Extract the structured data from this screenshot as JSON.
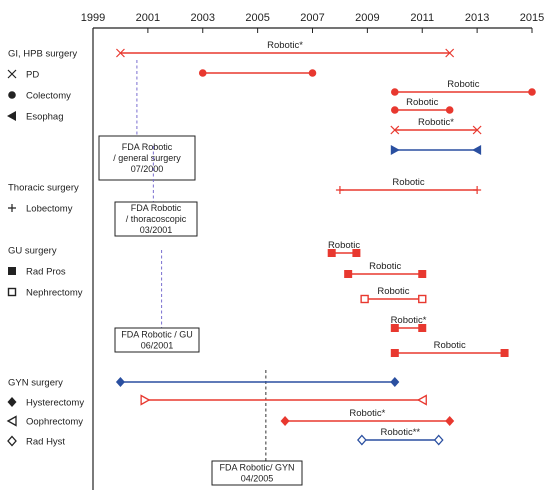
{
  "chart_data": {
    "type": "timeline",
    "x_axis": {
      "ticks": [
        1999,
        2001,
        2003,
        2005,
        2007,
        2009,
        2011,
        2013,
        2015
      ],
      "range": [
        1999,
        2015
      ]
    },
    "colors": {
      "red": "#e8382f",
      "blue": "#2a4fa0",
      "fda_red": "#7a6fd0",
      "fda_black": "#333333"
    },
    "categories": [
      {
        "text": "GI, HPB surgery",
        "kind": "header"
      },
      {
        "text": "PD",
        "kind": "legend",
        "marker": "x-icon"
      },
      {
        "text": "Colectomy",
        "kind": "legend",
        "marker": "circle-icon"
      },
      {
        "text": "Esophag",
        "kind": "legend",
        "marker": "left-triangle-icon"
      },
      {
        "text": "Thoracic surgery",
        "kind": "header"
      },
      {
        "text": "Lobectomy",
        "kind": "legend",
        "marker": "plus-icon"
      },
      {
        "text": "GU surgery",
        "kind": "header"
      },
      {
        "text": "Rad Pros",
        "kind": "legend",
        "marker": "square-icon"
      },
      {
        "text": "Nephrectomy",
        "kind": "legend",
        "marker": "open-square-icon"
      },
      {
        "text": "GYN surgery",
        "kind": "header"
      },
      {
        "text": "Hysterectomy",
        "kind": "legend",
        "marker": "diamond-icon"
      },
      {
        "text": "Oophrectomy",
        "kind": "legend",
        "marker": "open-left-triangle-icon"
      },
      {
        "text": "Rad Hyst",
        "kind": "legend",
        "marker": "open-diamond-icon"
      }
    ],
    "segments": [
      {
        "start": 2000.0,
        "end": 2012.0,
        "label": "Robotic*",
        "color": "red",
        "marker": "x"
      },
      {
        "start": 2003.0,
        "end": 2007.0,
        "label": "",
        "color": "red",
        "marker": "circle"
      },
      {
        "start": 2010.0,
        "end": 2015.0,
        "label": "Robotic",
        "color": "red",
        "marker": "circle"
      },
      {
        "start": 2010.0,
        "end": 2012.0,
        "label": "Robotic",
        "color": "red",
        "marker": "circle"
      },
      {
        "start": 2010.0,
        "end": 2013.0,
        "label": "Robotic*",
        "color": "red",
        "marker": "x"
      },
      {
        "start": 2010.0,
        "end": 2013.0,
        "label": "",
        "color": "blue",
        "marker": "triangle"
      },
      {
        "start": 2008.0,
        "end": 2013.0,
        "label": "Robotic",
        "color": "red",
        "marker": "plus"
      },
      {
        "start": 2007.7,
        "end": 2008.6,
        "label": "Robotic",
        "color": "red",
        "marker": "square"
      },
      {
        "start": 2008.3,
        "end": 2011.0,
        "label": "Robotic",
        "color": "red",
        "marker": "square"
      },
      {
        "start": 2008.9,
        "end": 2011.0,
        "label": "Robotic",
        "color": "red",
        "marker": "open-square"
      },
      {
        "start": 2010.0,
        "end": 2011.0,
        "label": "Robotic*",
        "color": "red",
        "marker": "square"
      },
      {
        "start": 2010.0,
        "end": 2014.0,
        "label": "Robotic",
        "color": "red",
        "marker": "square"
      },
      {
        "start": 2000.0,
        "end": 2010.0,
        "label": "",
        "color": "blue",
        "marker": "diamond"
      },
      {
        "start": 2000.9,
        "end": 2011.0,
        "label": "",
        "color": "red",
        "marker": "open-triangle"
      },
      {
        "start": 2006.0,
        "end": 2012.0,
        "label": "Robotic*",
        "color": "red",
        "marker": "diamond"
      },
      {
        "start": 2008.8,
        "end": 2011.6,
        "label": "Robotic**",
        "color": "blue",
        "marker": "open-diamond"
      }
    ],
    "fda_approvals": [
      {
        "year": 2000.6,
        "lines": [
          "FDA Robotic",
          "/ general surgery",
          "07/2000"
        ]
      },
      {
        "year": 2001.2,
        "lines": [
          "FDA Robotic",
          "/ thoracoscopic",
          "03/2001"
        ]
      },
      {
        "year": 2001.5,
        "lines": [
          "FDA Robotic / GU",
          "06/2001"
        ]
      },
      {
        "year": 2005.3,
        "lines": [
          "FDA Robotic/ GYN",
          "04/2005"
        ]
      }
    ]
  }
}
